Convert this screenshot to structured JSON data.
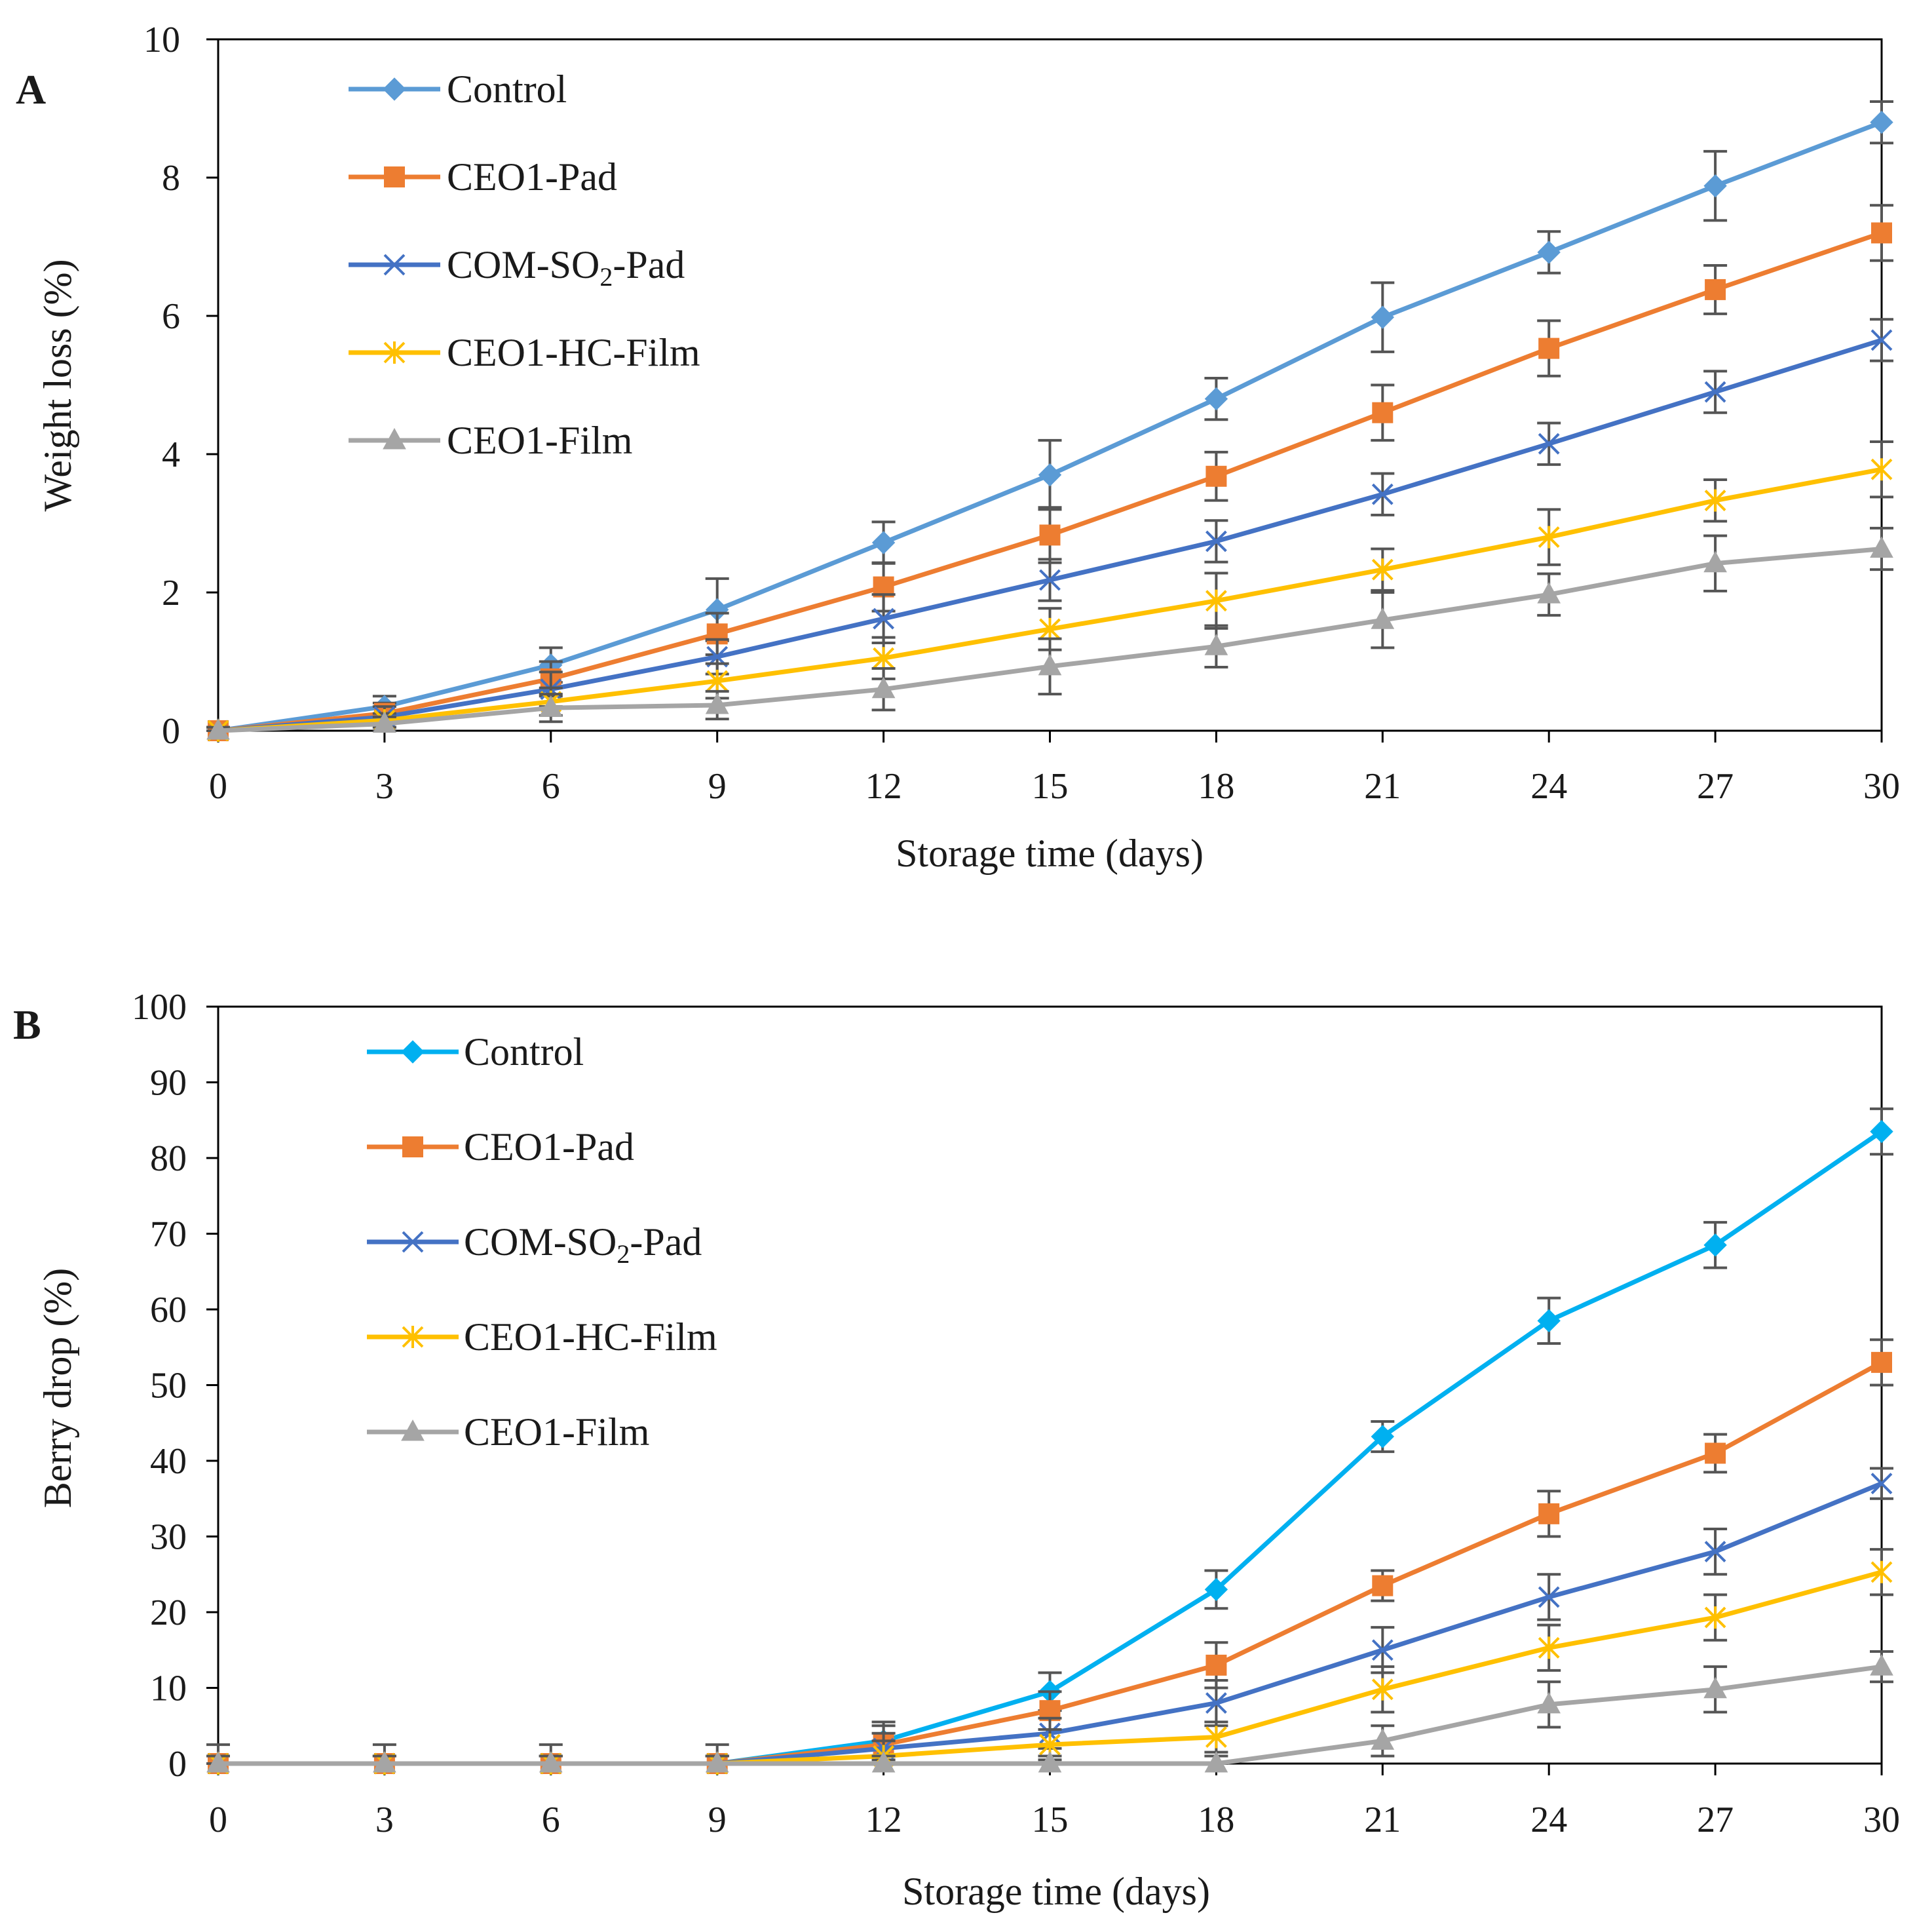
{
  "chart_data": [
    {
      "type": "line",
      "panel_label": "A",
      "xlabel": "Storage time (days)",
      "ylabel": "Weight loss (%)",
      "x": [
        0,
        3,
        6,
        9,
        12,
        15,
        18,
        21,
        24,
        27,
        30
      ],
      "x_tick_labels": [
        "0",
        "3",
        "6",
        "9",
        "12",
        "15",
        "18",
        "21",
        "24",
        "27",
        "30"
      ],
      "xlim": [
        0,
        30
      ],
      "ylim": [
        0,
        10
      ],
      "y_ticks": [
        0,
        2,
        4,
        6,
        8,
        10
      ],
      "y_tick_labels": [
        "0",
        "2",
        "4",
        "6",
        "8",
        "10"
      ],
      "legend_position": "top-left",
      "series": [
        {
          "name": "Control",
          "legend_parts": [
            "Control"
          ],
          "color": "#5b9bd5",
          "marker": "diamond",
          "values": [
            0,
            0.35,
            0.95,
            1.75,
            2.72,
            3.7,
            4.8,
            5.98,
            6.92,
            7.88,
            8.8
          ],
          "errors": [
            0.05,
            0.15,
            0.25,
            0.45,
            0.3,
            0.5,
            0.3,
            0.5,
            0.3,
            0.5,
            0.3
          ]
        },
        {
          "name": "CEO1-Pad",
          "legend_parts": [
            "CEO1-Pad"
          ],
          "color": "#ed7d31",
          "marker": "square",
          "values": [
            0,
            0.25,
            0.75,
            1.4,
            2.08,
            2.83,
            3.68,
            4.6,
            5.53,
            6.38,
            7.2
          ],
          "errors": [
            0.05,
            0.15,
            0.25,
            0.3,
            0.35,
            0.4,
            0.35,
            0.4,
            0.4,
            0.35,
            0.4
          ]
        },
        {
          "name": "COM-SO2-Pad",
          "legend_parts": [
            "COM-SO",
            "2",
            "-Pad"
          ],
          "color": "#4472c4",
          "marker": "x",
          "values": [
            0,
            0.2,
            0.6,
            1.07,
            1.62,
            2.18,
            2.74,
            3.42,
            4.15,
            4.9,
            5.65
          ],
          "errors": [
            0.05,
            0.15,
            0.25,
            0.25,
            0.35,
            0.3,
            0.3,
            0.3,
            0.3,
            0.3,
            0.3
          ]
        },
        {
          "name": "CEO1-HC-Film",
          "legend_parts": [
            "CEO1-HC-Film"
          ],
          "color": "#ffc000",
          "marker": "cross",
          "values": [
            0,
            0.15,
            0.42,
            0.72,
            1.05,
            1.47,
            1.88,
            2.33,
            2.8,
            3.33,
            3.78
          ],
          "errors": [
            0.05,
            0.1,
            0.2,
            0.25,
            0.3,
            0.3,
            0.4,
            0.3,
            0.4,
            0.3,
            0.4
          ]
        },
        {
          "name": "CEO1-Film",
          "legend_parts": [
            "CEO1-Film"
          ],
          "color": "#a5a5a5",
          "marker": "triangle",
          "values": [
            0,
            0.1,
            0.33,
            0.37,
            0.6,
            0.93,
            1.22,
            1.6,
            1.97,
            2.42,
            2.63
          ],
          "errors": [
            0.05,
            0.1,
            0.2,
            0.2,
            0.3,
            0.4,
            0.3,
            0.4,
            0.3,
            0.4,
            0.3
          ]
        }
      ]
    },
    {
      "type": "line",
      "panel_label": "B",
      "xlabel": "Storage time (days)",
      "ylabel": "Berry drop (%)",
      "x": [
        0,
        3,
        6,
        9,
        12,
        15,
        18,
        21,
        24,
        27,
        30
      ],
      "x_tick_labels": [
        "0",
        "3",
        "6",
        "9",
        "12",
        "15",
        "18",
        "21",
        "24",
        "27",
        "30"
      ],
      "xlim": [
        0,
        30
      ],
      "ylim": [
        0,
        100
      ],
      "y_ticks": [
        0,
        10,
        20,
        30,
        40,
        50,
        60,
        70,
        80,
        90,
        100
      ],
      "y_tick_labels": [
        "0",
        "10",
        "20",
        "30",
        "40",
        "50",
        "60",
        "70",
        "80",
        "90",
        "100"
      ],
      "legend_position": "top-left",
      "series": [
        {
          "name": "Control",
          "legend_parts": [
            "Control"
          ],
          "color": "#00b0f0",
          "marker": "diamond",
          "values": [
            0,
            0,
            0,
            0,
            3,
            9.5,
            23,
            43.2,
            58.5,
            68.5,
            83.5
          ],
          "errors": [
            2.5,
            2.5,
            2.5,
            2.5,
            2.5,
            2.5,
            2.5,
            2,
            3,
            3,
            3
          ]
        },
        {
          "name": "CEO1-Pad",
          "legend_parts": [
            "CEO1-Pad"
          ],
          "color": "#ed7d31",
          "marker": "square",
          "values": [
            0,
            0,
            0,
            0,
            2.5,
            7,
            13,
            23.5,
            33,
            41,
            53
          ],
          "errors": [
            1,
            1,
            1,
            1,
            2.5,
            2.5,
            3,
            2,
            3,
            2.5,
            3
          ]
        },
        {
          "name": "COM-SO2-Pad",
          "legend_parts": [
            "COM-SO",
            "2",
            "-Pad"
          ],
          "color": "#4472c4",
          "marker": "x",
          "values": [
            0,
            0,
            0,
            0,
            2,
            4,
            8,
            15,
            22,
            28,
            37
          ],
          "errors": [
            1,
            1,
            1,
            1,
            2,
            2,
            3,
            3,
            3,
            3,
            2
          ]
        },
        {
          "name": "CEO1-HC-Film",
          "legend_parts": [
            "CEO1-HC-Film"
          ],
          "color": "#ffc000",
          "marker": "cross",
          "values": [
            0,
            0,
            0,
            0,
            1,
            2.5,
            3.5,
            9.8,
            15.3,
            19.3,
            25.3
          ],
          "errors": [
            1,
            1,
            1,
            1,
            2,
            2,
            2,
            3,
            3,
            3,
            3
          ]
        },
        {
          "name": "CEO1-Film",
          "legend_parts": [
            "CEO1-Film"
          ],
          "color": "#a5a5a5",
          "marker": "triangle",
          "values": [
            0,
            0,
            0,
            0,
            0,
            0,
            0,
            3,
            7.8,
            9.8,
            12.8
          ],
          "errors": [
            1,
            1,
            1,
            1,
            1,
            1,
            1,
            2,
            3,
            3,
            2
          ]
        }
      ]
    }
  ]
}
